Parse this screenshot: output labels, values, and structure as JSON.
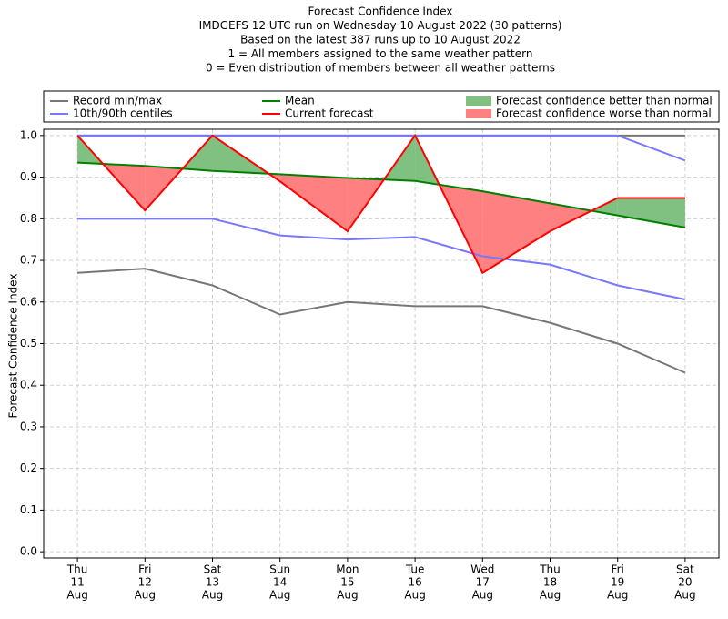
{
  "chart_data": {
    "type": "line",
    "title": [
      "Forecast Confidence Index",
      "IMDGEFS 12 UTC run on Wednesday 10 August 2022 (30 patterns)",
      "Based on the latest 387 runs up to 10 August 2022",
      "1 = All members assigned to the same weather pattern",
      "0 = Even distribution of members between all weather patterns"
    ],
    "y_label": "Forecast Confidence Index",
    "categories": [
      [
        "Thu",
        "11",
        "Aug"
      ],
      [
        "Fri",
        "12",
        "Aug"
      ],
      [
        "Sat",
        "13",
        "Aug"
      ],
      [
        "Sun",
        "14",
        "Aug"
      ],
      [
        "Mon",
        "15",
        "Aug"
      ],
      [
        "Tue",
        "16",
        "Aug"
      ],
      [
        "Wed",
        "17",
        "Aug"
      ],
      [
        "Thu",
        "18",
        "Aug"
      ],
      [
        "Fri",
        "19",
        "Aug"
      ],
      [
        "Sat",
        "20",
        "Aug"
      ]
    ],
    "xlim": [
      -0.5,
      9.5
    ],
    "ylim": [
      -0.015,
      1.015
    ],
    "yticks": [
      {
        "value": 0,
        "label": "0.0"
      },
      0.1,
      0.2,
      0.3,
      0.4,
      0.5,
      0.6,
      0.7,
      0.8,
      0.9,
      {
        "value": 1,
        "label": "1.0"
      }
    ],
    "grid": true,
    "bands": [
      {
        "name": "Record min/max",
        "color": "#777777",
        "lower": [
          0.67,
          0.68,
          0.64,
          0.57,
          0.6,
          0.59,
          0.59,
          0.55,
          0.5,
          0.43
        ],
        "upper": [
          1,
          1,
          1,
          1,
          1,
          1,
          1,
          1,
          1,
          1
        ]
      },
      {
        "name": "10th/90th centiles",
        "color": "#7777ff",
        "lower": [
          0.8,
          0.8,
          0.8,
          0.76,
          0.75,
          0.756,
          0.71,
          0.69,
          0.64,
          0.606
        ],
        "upper": [
          1,
          1,
          1,
          1,
          1,
          1,
          1,
          1,
          1,
          0.94
        ]
      }
    ],
    "series": [
      {
        "name": "Mean",
        "color": "#008000",
        "values": [
          0.935,
          0.927,
          0.915,
          0.907,
          0.898,
          0.891,
          0.866,
          0.837,
          0.808,
          0.779
        ]
      },
      {
        "name": "Current forecast",
        "color": "#ff0000",
        "values": [
          1,
          0.82,
          1,
          0.89,
          0.77,
          1,
          0.67,
          0.77,
          0.85,
          0.85
        ]
      }
    ],
    "fills": [
      {
        "name": "Forecast confidence better than normal",
        "color": "#80c080"
      },
      {
        "name": "Forecast confidence worse than normal",
        "color": "#ff8080"
      }
    ]
  }
}
